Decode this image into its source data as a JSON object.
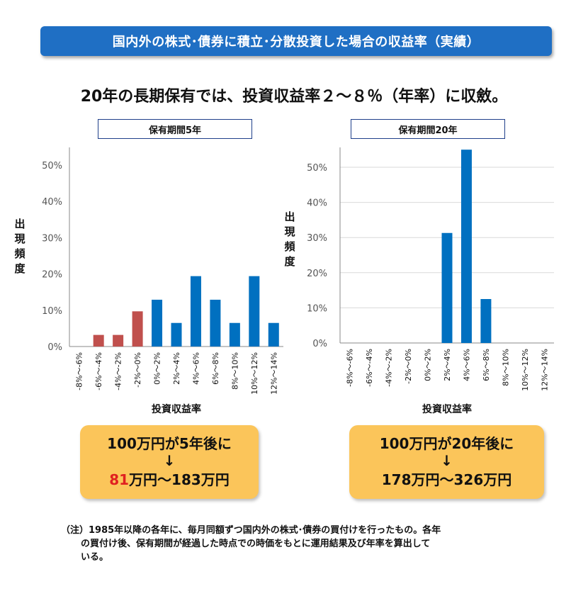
{
  "banner": "国内外の株式･債券に積立･分散投資した場合の収益率（実績）",
  "subtitle": "20年の長期保有では、投資収益率２～８％（年率）に収斂。",
  "left": {
    "title": "保有期間5年",
    "ylabel": "出現頻度",
    "box_line1": "100万円が5年後に",
    "arrow": "↓",
    "box_min": "81",
    "box_rest": "万円～183万円"
  },
  "right": {
    "title": "保有期間20年",
    "ylabel": "出現頻度",
    "box_line1": "100万円が20年後に",
    "arrow": "↓",
    "box_line3": "178万円～326万円"
  },
  "note_line1": "（注）1985年以降の各年に、毎月同額ずつ国内外の株式･債券の買付けを行ったもの。各年",
  "note_line2": "の買付け後、保有期間が経過した時点での時価をもとに運用結果及び年率を算出して",
  "note_line3": "いる。",
  "chart_data": [
    {
      "type": "bar",
      "title": "保有期間5年",
      "xlabel": "投資収益率",
      "ylabel": "出現頻度",
      "categories": [
        "-8%～-6%",
        "-6%～-4%",
        "-4%～-2%",
        "-2%～0%",
        "0%～2%",
        "2%～4%",
        "4%～6%",
        "6%～8%",
        "8%～10%",
        "10%～12%",
        "12%～14%"
      ],
      "values": [
        0,
        3.2,
        3.2,
        9.7,
        12.9,
        6.5,
        19.4,
        12.9,
        6.5,
        19.4,
        6.5
      ],
      "colors": [
        "#c0504d",
        "#c0504d",
        "#c0504d",
        "#c0504d",
        "#0070c0",
        "#0070c0",
        "#0070c0",
        "#0070c0",
        "#0070c0",
        "#0070c0",
        "#0070c0"
      ],
      "yticks": [
        "0%",
        "10%",
        "20%",
        "30%",
        "40%",
        "50%"
      ],
      "ylim": [
        0,
        55
      ],
      "grid": false
    },
    {
      "type": "bar",
      "title": "保有期間20年",
      "xlabel": "投資収益率",
      "ylabel": "出現頻度",
      "categories": [
        "-8%～-6%",
        "-6%～-4%",
        "-4%～-2%",
        "-2%～0%",
        "0%～2%",
        "2%～4%",
        "4%～6%",
        "6%～8%",
        "8%～10%",
        "10%～12%",
        "12%～14%"
      ],
      "values": [
        0,
        0,
        0,
        0,
        0,
        31.3,
        55.0,
        12.5,
        0,
        0,
        0
      ],
      "colors": [
        "#0070c0",
        "#0070c0",
        "#0070c0",
        "#0070c0",
        "#0070c0",
        "#0070c0",
        "#0070c0",
        "#0070c0",
        "#0070c0",
        "#0070c0",
        "#0070c0"
      ],
      "yticks": [
        "0%",
        "10%",
        "20%",
        "30%",
        "40%",
        "50%"
      ],
      "ylim": [
        0,
        55
      ],
      "grid": true
    }
  ]
}
